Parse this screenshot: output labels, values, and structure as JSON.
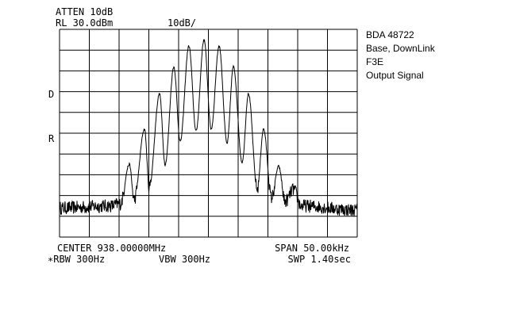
{
  "header": {
    "atten": "ATTEN 10dB",
    "ref_level": "RL 30.0dBm",
    "scale": "10dB/"
  },
  "side_markers": {
    "d": "D",
    "r": "R"
  },
  "footer": {
    "center": "CENTER 938.00000MHz",
    "span": "SPAN 50.00kHz",
    "rbw": "∗RBW 300Hz",
    "vbw": "VBW 300Hz",
    "sweep": "SWP 1.40sec"
  },
  "annotation": [
    "BDA 48722",
    "Base, DownLink",
    "F3E",
    "Output Signal"
  ],
  "chart_data": {
    "type": "line",
    "title": "",
    "xlabel": "",
    "ylabel": "",
    "x_unit": "MHz",
    "y_unit": "dBm",
    "xlim": [
      937.975,
      938.025
    ],
    "ylim": [
      -70,
      30
    ],
    "x_divisions": 10,
    "y_divisions": 10,
    "grid": true,
    "noise_floor_dbm": -56,
    "trace_color": "#000000",
    "trace_keypoints": [
      [
        937.975,
        -56
      ],
      [
        937.9835,
        -55
      ],
      [
        937.9852,
        -54
      ],
      [
        937.98673,
        -35
      ],
      [
        937.98753,
        -52
      ],
      [
        937.98927,
        -18
      ],
      [
        937.99007,
        -46
      ],
      [
        937.9918,
        -1
      ],
      [
        937.99273,
        -35
      ],
      [
        937.9942,
        12
      ],
      [
        937.99527,
        -24
      ],
      [
        937.99673,
        22
      ],
      [
        937.99793,
        -19
      ],
      [
        937.99927,
        25
      ],
      [
        938.00047,
        -18
      ],
      [
        938.0018,
        22
      ],
      [
        938.00313,
        -25
      ],
      [
        938.0042,
        12
      ],
      [
        938.00567,
        -34
      ],
      [
        938.00673,
        -1
      ],
      [
        938.0082,
        -47
      ],
      [
        938.00927,
        -18
      ],
      [
        938.0106,
        -51
      ],
      [
        938.0118,
        -36
      ],
      [
        938.0129,
        -53
      ],
      [
        938.0143,
        -47
      ],
      [
        938.0156,
        -55
      ],
      [
        938.025,
        -57
      ]
    ]
  }
}
